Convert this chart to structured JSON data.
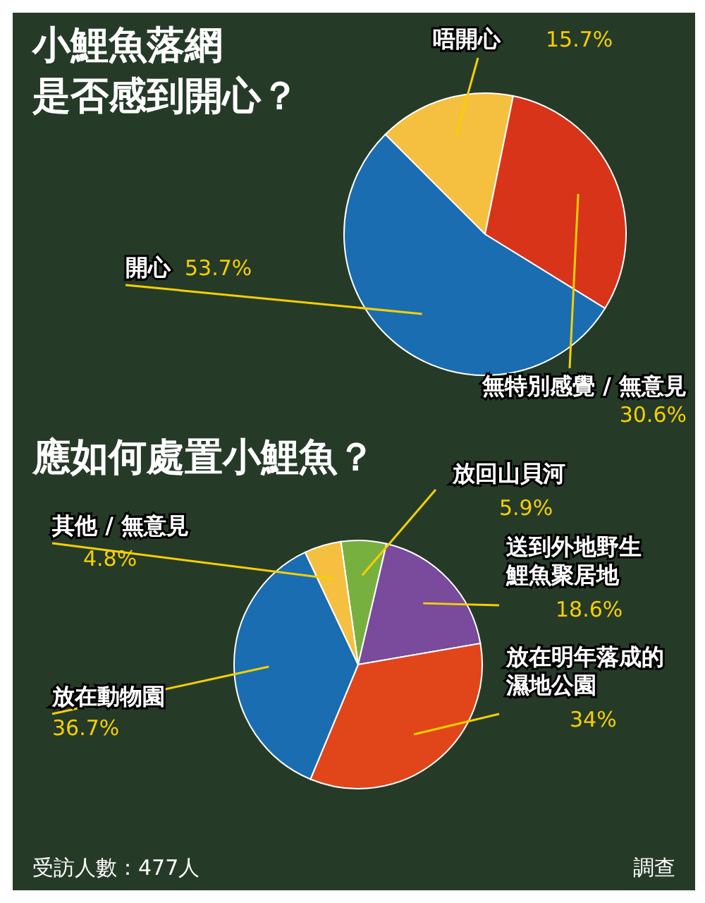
{
  "chart_data": [
    {
      "type": "pie",
      "title": "小鯉魚落網是否感到開心？",
      "categories": [
        "唔開心",
        "無特別感覺 / 無意見",
        "開心"
      ],
      "values": [
        15.7,
        30.6,
        53.7
      ],
      "value_labels": [
        "15.7%",
        "30.6%",
        "53.7%"
      ],
      "colors": [
        "#f5c040",
        "#d8341a",
        "#1a6db0"
      ],
      "legend": false
    },
    {
      "type": "pie",
      "title": "應如何處置小鯉魚？",
      "categories": [
        "放回山貝河",
        "送到外地野生鯉魚聚居地",
        "放在明年落成的濕地公園",
        "放在動物園",
        "其他 / 無意見"
      ],
      "values": [
        5.9,
        18.6,
        34,
        36.7,
        4.8
      ],
      "value_labels": [
        "5.9%",
        "18.6%",
        "34%",
        "36.7%",
        "4.8%"
      ],
      "colors": [
        "#78b040",
        "#7a4a9c",
        "#e0461a",
        "#1a6db0",
        "#f5c040"
      ],
      "legend": false,
      "annotations": [
        "受訪人數：477人",
        "調查"
      ]
    }
  ]
}
